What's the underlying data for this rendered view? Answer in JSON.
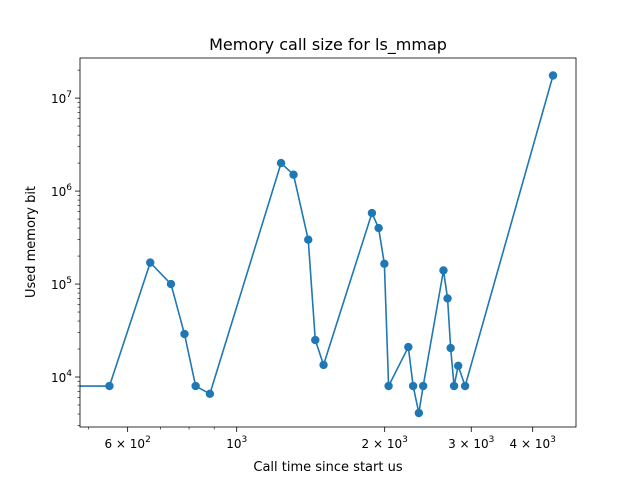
{
  "chart_data": {
    "type": "line",
    "title": "Memory call size for ls_mmap",
    "xlabel": "Call time since start us",
    "ylabel": "Used memory bit",
    "xscale": "log",
    "yscale": "log",
    "xlim": [
      480,
      4900
    ],
    "ylim": [
      2900,
      27000000
    ],
    "grid": false,
    "line_color": "#1f77b4",
    "marker": "circle",
    "x_ticks": [
      {
        "value": 600,
        "base": "6 × 10",
        "exp": "2"
      },
      {
        "value": 1000,
        "base": "10",
        "exp": "3"
      },
      {
        "value": 2000,
        "base": "2 × 10",
        "exp": "3"
      },
      {
        "value": 3000,
        "base": "3 × 10",
        "exp": "3"
      },
      {
        "value": 4000,
        "base": "4 × 10",
        "exp": "3"
      }
    ],
    "y_ticks": [
      {
        "value": 10000,
        "base": "10",
        "exp": "4"
      },
      {
        "value": 100000,
        "base": "10",
        "exp": "5"
      },
      {
        "value": 1000000,
        "base": "10",
        "exp": "6"
      },
      {
        "value": 10000000,
        "base": "10",
        "exp": "7"
      }
    ],
    "series": [
      {
        "x": [
          400,
          551,
          667,
          735,
          783,
          825,
          882,
          1231,
          1305,
          1398,
          1445,
          1502,
          1884,
          1944,
          1997,
          2037,
          2234,
          2285,
          2347,
          2395,
          2634,
          2685,
          2724,
          2768,
          2822,
          2915,
          4400
        ],
        "y": [
          8000,
          8000,
          170000,
          100000,
          29000,
          8000,
          6600,
          2000000,
          1500000,
          300000,
          25000,
          13500,
          580000,
          400000,
          165000,
          8000,
          21000,
          8000,
          4100,
          8000,
          140000,
          70000,
          20500,
          8000,
          13200,
          8000,
          17500000
        ],
        "markers_from_index": 1
      }
    ]
  }
}
